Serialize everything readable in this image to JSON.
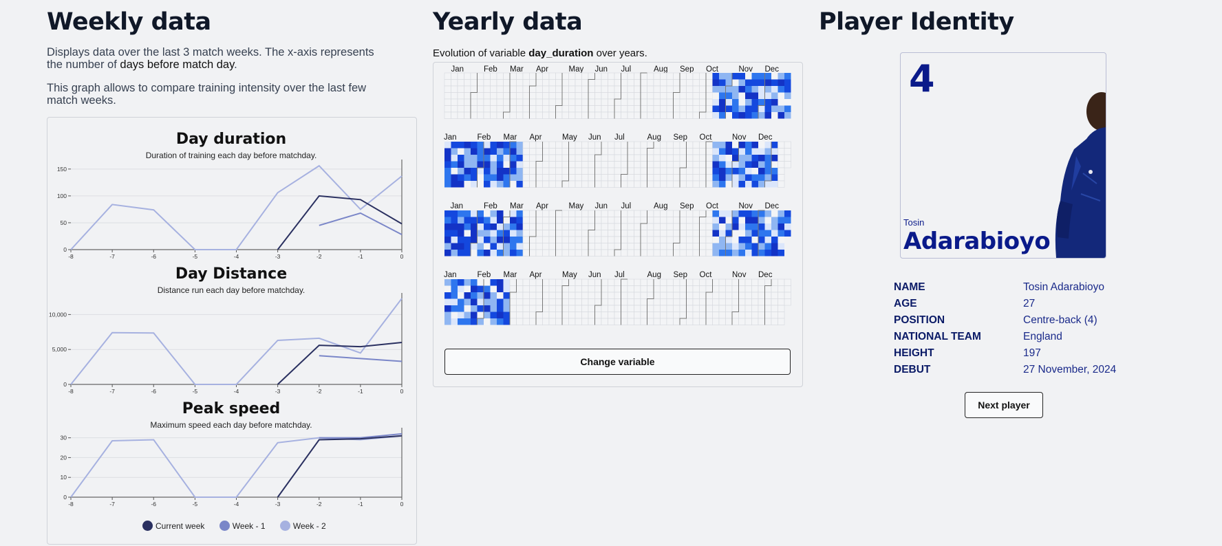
{
  "weekly": {
    "title": "Weekly data",
    "desc1_a": "Displays data over the last 3 match weeks. The x-axis represents the number of ",
    "desc1_b": "days before match day",
    "desc1_c": ".",
    "desc2": "This graph allows to compare training intensity over the last few match weeks."
  },
  "yearly": {
    "title": "Yearly data",
    "subtitle_a": "Evolution of variable ",
    "subtitle_b": "day_duration",
    "subtitle_c": " over years.",
    "button": "Change variable",
    "months": [
      "Jan",
      "Feb",
      "Mar",
      "Apr",
      "May",
      "Jun",
      "Jul",
      "Aug",
      "Sep",
      "Oct",
      "Nov",
      "Dec"
    ],
    "scale_colors": [
      "#dbe6fb",
      "#8fb6f2",
      "#2e76ee",
      "#1448de",
      "#1333c6"
    ]
  },
  "player": {
    "title": "Player Identity",
    "number": "4",
    "first_name": "Tosin",
    "last_name": "Adarabioyo",
    "fields": [
      {
        "key": "NAME",
        "value": "Tosin Adarabioyo"
      },
      {
        "key": "AGE",
        "value": "27"
      },
      {
        "key": "POSITION",
        "value": "Centre-back (4)"
      },
      {
        "key": "NATIONAL TEAM",
        "value": "England"
      },
      {
        "key": "HEIGHT",
        "value": "197"
      },
      {
        "key": "DEBUT",
        "value": "27 November, 2024"
      }
    ],
    "button": "Next player"
  },
  "legend": [
    {
      "label": "Current week",
      "color": "#2a3060"
    },
    {
      "label": "Week - 1",
      "color": "#7a86c8"
    },
    {
      "label": "Week - 2",
      "color": "#a6b1e0"
    }
  ],
  "chart_data": [
    {
      "type": "line",
      "title": "Day duration",
      "subtitle": "Duration of training each day before matchday.",
      "x": [
        -8,
        -7,
        -6,
        -5,
        -4,
        -3,
        -2,
        -1,
        0
      ],
      "yticks": [
        "0",
        "50",
        "100",
        "150"
      ],
      "ylim": [
        0,
        160
      ],
      "series": [
        {
          "name": "Current week",
          "values": [
            null,
            null,
            null,
            null,
            null,
            0,
            100,
            93,
            48
          ]
        },
        {
          "name": "Week - 1",
          "values": [
            null,
            null,
            null,
            null,
            null,
            null,
            45,
            68,
            28
          ]
        },
        {
          "name": "Week - 2",
          "values": [
            0,
            84,
            74,
            0,
            0,
            106,
            156,
            75,
            137
          ]
        }
      ]
    },
    {
      "type": "line",
      "title": "Day Distance",
      "subtitle": "Distance run each day before matchday.",
      "x": [
        -8,
        -7,
        -6,
        -5,
        -4,
        -3,
        -2,
        -1,
        0
      ],
      "yticks": [
        "0",
        "5,000",
        "10,000"
      ],
      "ylim": [
        0,
        12500
      ],
      "series": [
        {
          "name": "Current week",
          "values": [
            null,
            null,
            null,
            null,
            null,
            0,
            5600,
            5400,
            6000
          ]
        },
        {
          "name": "Week - 1",
          "values": [
            null,
            null,
            null,
            null,
            null,
            null,
            4100,
            3700,
            3300
          ]
        },
        {
          "name": "Week - 2",
          "values": [
            0,
            7400,
            7350,
            0,
            0,
            6300,
            6600,
            4500,
            12300
          ]
        }
      ]
    },
    {
      "type": "line",
      "title": "Peak speed",
      "subtitle": "Maximum speed each day before matchday.",
      "x": [
        -8,
        -7,
        -6,
        -5,
        -4,
        -3,
        -2,
        -1,
        0
      ],
      "yticks": [
        "0",
        "10",
        "20",
        "30"
      ],
      "ylim": [
        0,
        33
      ],
      "series": [
        {
          "name": "Current week",
          "values": [
            null,
            null,
            null,
            null,
            null,
            0,
            29,
            29.5,
            31
          ]
        },
        {
          "name": "Week - 1",
          "values": [
            null,
            null,
            null,
            null,
            null,
            null,
            30,
            30,
            32
          ]
        },
        {
          "name": "Week - 2",
          "values": [
            0,
            28.5,
            29,
            0,
            0,
            27.5,
            30,
            29,
            31
          ]
        }
      ]
    },
    {
      "type": "heatmap",
      "title": "",
      "years": 4,
      "level_seeds": [
        11,
        23,
        37,
        53
      ]
    }
  ]
}
